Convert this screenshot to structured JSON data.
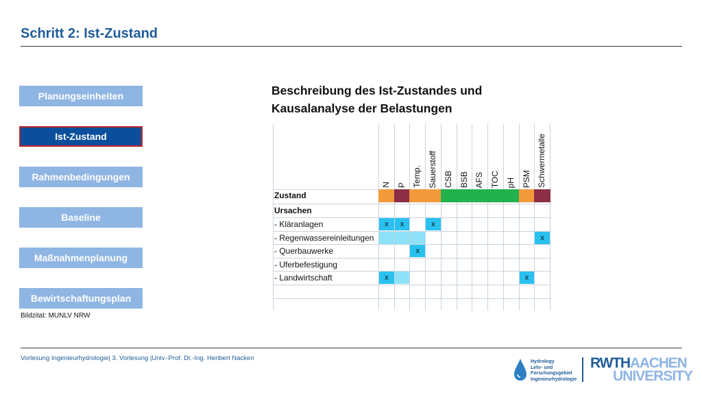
{
  "title": "Schritt 2: Ist-Zustand",
  "nav": [
    {
      "label": "Planungseinheiten",
      "active": false
    },
    {
      "label": "Ist-Zustand",
      "active": true
    },
    {
      "label": "Rahmenbedingungen",
      "active": false
    },
    {
      "label": "Baseline",
      "active": false
    },
    {
      "label": "Maßnahmenplanung",
      "active": false
    },
    {
      "label": "Bewirtschaftungsplan",
      "active": false
    }
  ],
  "image_credit": "Bildzitat: MUNLV NRW",
  "heading": {
    "line1": "Beschreibung des Ist-Zustandes und",
    "line2": "Kausalanalyse der Belastungen"
  },
  "matrix": {
    "columns": [
      "N",
      "P",
      "Temp.",
      "Sauerstoff",
      "CSB",
      "BSB",
      "AFS",
      "TOC",
      "pH",
      "PSM",
      "Schwermetalle"
    ],
    "zustand_label": "Zustand",
    "zustand_colors": [
      "#f39a3c",
      "#8c2e46",
      "#f39a3c",
      "#f39a3c",
      "#22b14c",
      "#22b14c",
      "#22b14c",
      "#22b14c",
      "#22b14c",
      "#f39a3c",
      "#8c2e46"
    ],
    "ursachen_label": "Ursachen",
    "rows": [
      {
        "label": "- Kläranlagen",
        "cells": [
          "x",
          "x",
          "",
          "x",
          "",
          "",
          "",
          "",
          "",
          "",
          ""
        ],
        "shaded": [
          0,
          1,
          3
        ]
      },
      {
        "label": "- Regenwassereinleitungen",
        "cells": [
          "",
          "",
          "",
          "",
          "",
          "",
          "",
          "",
          "",
          "",
          "x"
        ],
        "shaded": [
          0,
          1,
          2,
          10
        ]
      },
      {
        "label": "- Querbauwerke",
        "cells": [
          "",
          "",
          "x",
          "",
          "",
          "",
          "",
          "",
          "",
          "",
          ""
        ],
        "shaded": [
          2
        ]
      },
      {
        "label": "- Uferbefestigung",
        "cells": [
          "",
          "",
          "",
          "",
          "",
          "",
          "",
          "",
          "",
          "",
          ""
        ],
        "shaded": []
      },
      {
        "label": "- Landwirtschaft",
        "cells": [
          "x",
          "",
          "",
          "",
          "",
          "",
          "",
          "",
          "",
          "x",
          ""
        ],
        "shaded": [
          0,
          1,
          9
        ]
      }
    ],
    "mark_color": "#29c1ef",
    "shade_color": "#8de2f7"
  },
  "footer": "Vorlesung Ingenieurhydrologie| 3. Vorlesung |Univ.-Prof. Dr.-Ing. Heribert Nacken",
  "logo": {
    "line1": "Hydrology",
    "line2": "Lehr- und",
    "line3": "Forschungsgebiet",
    "line4": "Ingenieurhydrologie",
    "rwth_a": "RWTH",
    "rwth_b": "AACHEN",
    "rwth_c": "UNIVERSITY"
  }
}
